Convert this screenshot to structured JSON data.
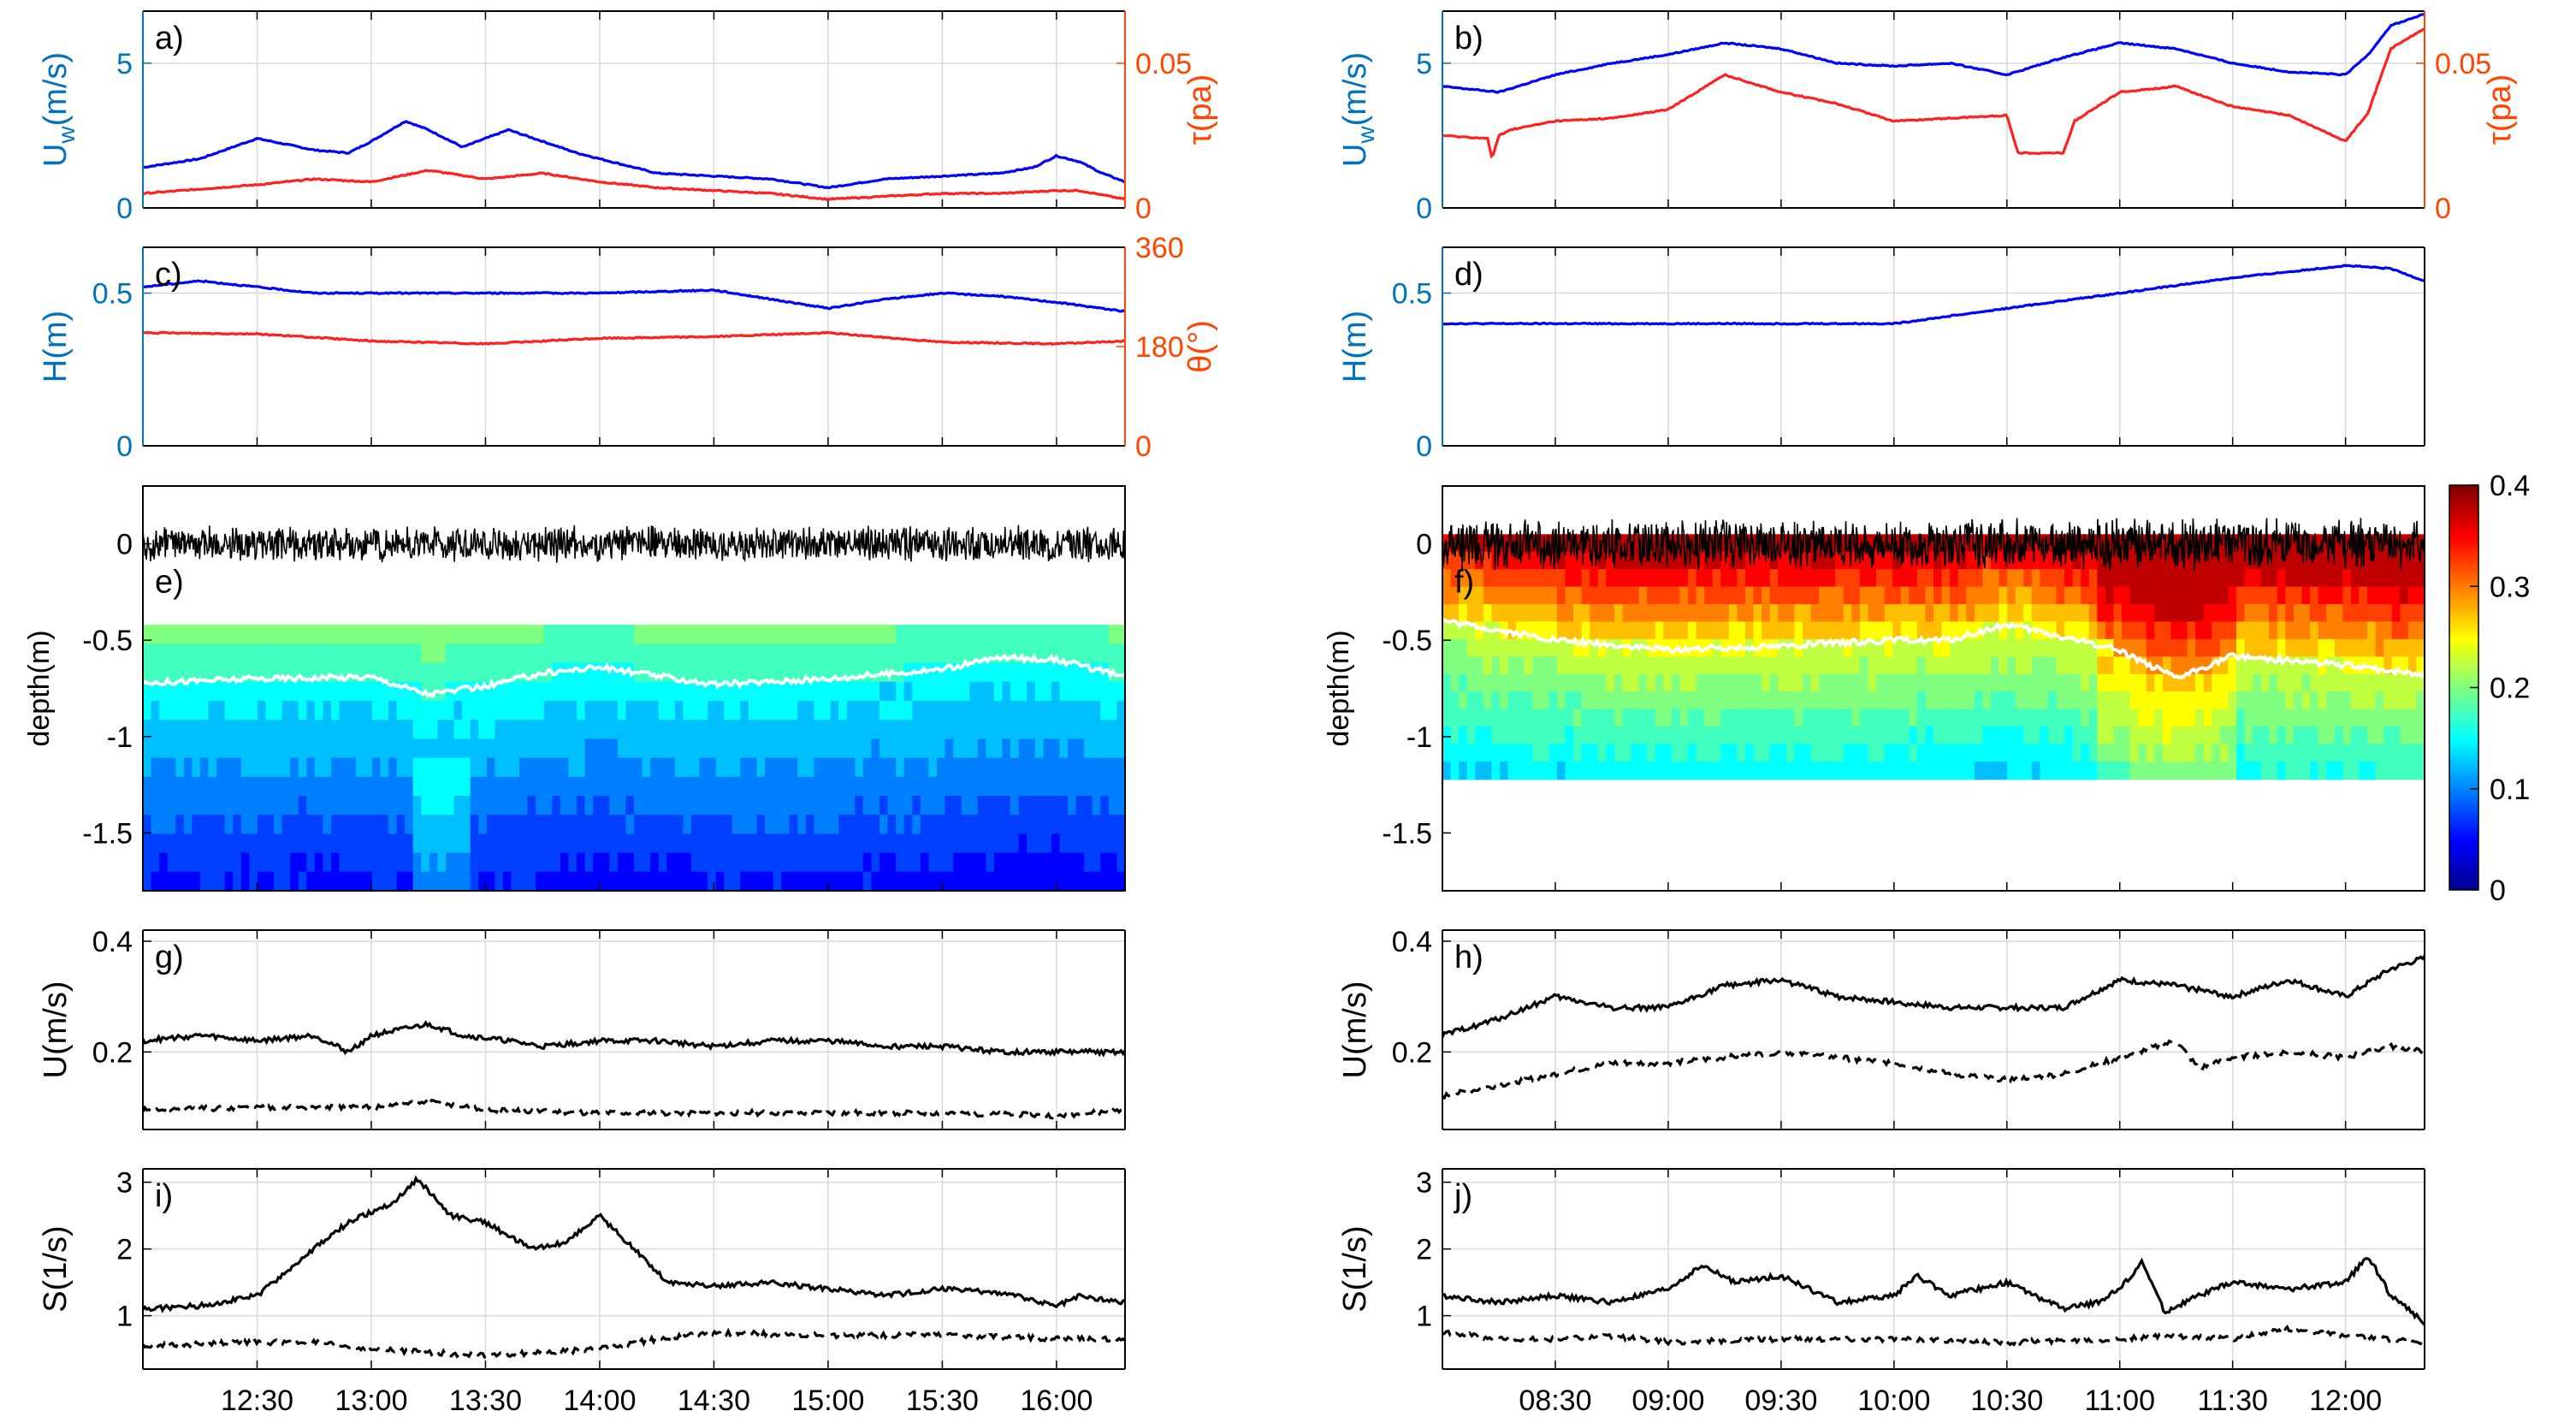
{
  "colors": {
    "blue": "#0000ff",
    "red": "#ff2020",
    "axisBlue": "#0072bd",
    "axisOrange": "#ff4500",
    "black": "#000000",
    "grid": "#d9d9d9"
  },
  "colorbar": {
    "ticks": [
      "0",
      "0.1",
      "0.2",
      "0.3",
      "0.4"
    ],
    "min": 0,
    "max": 0.4
  },
  "chart_data": [
    {
      "id": "a",
      "type": "line",
      "panel_label": "a)",
      "ylabel_left": "U",
      "ylabel_left_sub": "w",
      "ylabel_left_unit": "(m/s)",
      "ylabel_right": "τ(pa)",
      "xlim": [
        12.0,
        16.3
      ],
      "ylim_left": [
        0,
        6.8
      ],
      "ylim_right": [
        0,
        0.068
      ],
      "yticks_left": [
        {
          "v": 0,
          "t": "0"
        },
        {
          "v": 5,
          "t": "5"
        }
      ],
      "yticks_right": [
        {
          "v": 0,
          "t": "0"
        },
        {
          "v": 0.05,
          "t": "0.05"
        }
      ],
      "series": [
        {
          "name": "Uw",
          "axis": "left",
          "color": "blue",
          "x": [
            12.0,
            12.25,
            12.5,
            12.75,
            12.9,
            13.0,
            13.15,
            13.25,
            13.4,
            13.6,
            13.75,
            13.9,
            14.0,
            14.25,
            14.5,
            14.75,
            15.0,
            15.25,
            15.5,
            15.75,
            15.9,
            16.0,
            16.1,
            16.2,
            16.3
          ],
          "y": [
            1.4,
            1.7,
            2.4,
            2.0,
            1.9,
            2.3,
            3.0,
            2.7,
            2.1,
            2.7,
            2.3,
            1.9,
            1.7,
            1.2,
            1.1,
            1.0,
            0.7,
            1.0,
            1.1,
            1.2,
            1.4,
            1.8,
            1.6,
            1.2,
            0.9
          ]
        },
        {
          "name": "tau",
          "axis": "right",
          "color": "red",
          "x": [
            12.0,
            12.5,
            12.75,
            13.0,
            13.25,
            13.5,
            13.75,
            14.0,
            14.25,
            14.5,
            14.75,
            15.0,
            15.25,
            15.5,
            15.75,
            16.0,
            16.1,
            16.3
          ],
          "y": [
            0.005,
            0.008,
            0.01,
            0.009,
            0.013,
            0.01,
            0.012,
            0.009,
            0.007,
            0.006,
            0.005,
            0.003,
            0.004,
            0.005,
            0.005,
            0.006,
            0.006,
            0.003
          ]
        }
      ],
      "xticks": []
    },
    {
      "id": "b",
      "type": "line",
      "panel_label": "b)",
      "ylabel_left": "U",
      "ylabel_left_sub": "w",
      "ylabel_left_unit": "(m/s)",
      "ylabel_right": "τ(pa)",
      "xlim": [
        8.0,
        12.35
      ],
      "ylim_left": [
        0,
        6.8
      ],
      "ylim_right": [
        0,
        0.068
      ],
      "yticks_left": [
        {
          "v": 0,
          "t": "0"
        },
        {
          "v": 5,
          "t": "5"
        }
      ],
      "yticks_right": [
        {
          "v": 0,
          "t": "0"
        },
        {
          "v": 0.05,
          "t": "0.05"
        }
      ],
      "series": [
        {
          "name": "Uw",
          "axis": "left",
          "color": "blue",
          "x": [
            8.0,
            8.25,
            8.5,
            8.75,
            9.0,
            9.25,
            9.5,
            9.75,
            10.0,
            10.25,
            10.5,
            10.75,
            11.0,
            11.25,
            11.5,
            11.75,
            12.0,
            12.1,
            12.2,
            12.35
          ],
          "y": [
            4.2,
            4.0,
            4.6,
            5.0,
            5.3,
            5.7,
            5.5,
            5.0,
            4.9,
            5.0,
            4.6,
            5.2,
            5.7,
            5.5,
            5.0,
            4.7,
            4.6,
            5.3,
            6.3,
            6.7
          ]
        },
        {
          "name": "tau",
          "axis": "right",
          "color": "red",
          "x": [
            8.0,
            8.2,
            8.22,
            8.25,
            8.3,
            8.5,
            8.75,
            9.0,
            9.25,
            9.5,
            9.75,
            10.0,
            10.25,
            10.5,
            10.55,
            10.75,
            10.8,
            11.0,
            11.25,
            11.5,
            11.75,
            12.0,
            12.1,
            12.2,
            12.35
          ],
          "y": [
            0.025,
            0.024,
            0.017,
            0.025,
            0.027,
            0.03,
            0.031,
            0.034,
            0.046,
            0.04,
            0.036,
            0.03,
            0.031,
            0.032,
            0.019,
            0.019,
            0.03,
            0.04,
            0.042,
            0.035,
            0.032,
            0.023,
            0.033,
            0.055,
            0.062
          ]
        }
      ],
      "xticks": []
    },
    {
      "id": "c",
      "type": "line",
      "panel_label": "c)",
      "ylabel_left": "H(m)",
      "ylabel_right": "θ(°)",
      "xlim": [
        12.0,
        16.3
      ],
      "ylim_left": [
        0,
        0.65
      ],
      "ylim_right": [
        0,
        360
      ],
      "yticks_left": [
        {
          "v": 0,
          "t": "0"
        },
        {
          "v": 0.5,
          "t": "0.5"
        }
      ],
      "yticks_right": [
        {
          "v": 0,
          "t": "0"
        },
        {
          "v": 180,
          "t": "180"
        },
        {
          "v": 360,
          "t": "360"
        }
      ],
      "series": [
        {
          "name": "H",
          "axis": "left",
          "color": "blue",
          "x": [
            12.0,
            12.25,
            12.5,
            12.75,
            13.0,
            13.5,
            14.0,
            14.5,
            15.0,
            15.25,
            15.5,
            15.75,
            16.0,
            16.3
          ],
          "y": [
            0.52,
            0.54,
            0.52,
            0.5,
            0.5,
            0.5,
            0.5,
            0.51,
            0.45,
            0.48,
            0.5,
            0.49,
            0.47,
            0.44
          ]
        },
        {
          "name": "theta",
          "axis": "right",
          "color": "red",
          "x": [
            12.0,
            12.5,
            13.0,
            13.5,
            14.0,
            14.5,
            15.0,
            15.5,
            16.0,
            16.3
          ],
          "y": [
            205,
            203,
            190,
            185,
            195,
            198,
            205,
            188,
            185,
            190
          ]
        }
      ],
      "xticks": []
    },
    {
      "id": "d",
      "type": "line",
      "panel_label": "d)",
      "ylabel_left": "H(m)",
      "xlim": [
        8.0,
        12.35
      ],
      "ylim_left": [
        0,
        0.65
      ],
      "yticks_left": [
        {
          "v": 0,
          "t": "0"
        },
        {
          "v": 0.5,
          "t": "0.5"
        }
      ],
      "series": [
        {
          "name": "H",
          "axis": "left",
          "color": "blue",
          "x": [
            8.0,
            9.0,
            10.0,
            10.5,
            11.0,
            11.5,
            12.0,
            12.2,
            12.35
          ],
          "y": [
            0.4,
            0.4,
            0.4,
            0.45,
            0.5,
            0.55,
            0.59,
            0.58,
            0.54
          ]
        }
      ],
      "xticks": []
    },
    {
      "id": "e",
      "type": "heatmap",
      "panel_label": "e)",
      "ylabel_left": "depth(m)",
      "xlim": [
        12.0,
        16.3
      ],
      "ylim": [
        -1.8,
        0.3
      ],
      "yticks": [
        {
          "v": 0,
          "t": "0"
        },
        {
          "v": -0.5,
          "t": "-0.5"
        },
        {
          "v": -1,
          "t": "-1"
        },
        {
          "v": -1.5,
          "t": "-1.5"
        }
      ],
      "value_range": [
        0,
        0.4
      ],
      "top_of_data": -0.42,
      "white_contour": {
        "x": [
          12.0,
          12.5,
          13.0,
          13.25,
          13.5,
          13.75,
          14.0,
          14.5,
          15.0,
          15.5,
          15.75,
          16.0,
          16.3
        ],
        "y": [
          -0.72,
          -0.7,
          -0.69,
          -0.78,
          -0.74,
          -0.67,
          -0.64,
          -0.73,
          -0.7,
          -0.65,
          -0.59,
          -0.6,
          -0.69
        ]
      },
      "surface_line": "black noisy surface at 0 m",
      "xticks": []
    },
    {
      "id": "f",
      "type": "heatmap",
      "panel_label": "f)",
      "ylabel_left": "depth(m)",
      "xlim": [
        8.0,
        12.35
      ],
      "ylim": [
        -1.8,
        0.3
      ],
      "yticks": [
        {
          "v": 0,
          "t": "0"
        },
        {
          "v": -0.5,
          "t": "-0.5"
        },
        {
          "v": -1,
          "t": "-1"
        },
        {
          "v": -1.5,
          "t": "-1.5"
        }
      ],
      "value_range": [
        0,
        0.4
      ],
      "bottom_of_data": -1.22,
      "white_contour": {
        "x": [
          8.0,
          8.5,
          9.0,
          9.5,
          10.0,
          10.25,
          10.5,
          11.0,
          11.25,
          11.5,
          12.0,
          12.35
        ],
        "y": [
          -0.4,
          -0.5,
          -0.55,
          -0.53,
          -0.5,
          -0.5,
          -0.42,
          -0.55,
          -0.7,
          -0.58,
          -0.63,
          -0.68
        ]
      },
      "surface_line": "black noisy surface at 0 m",
      "xticks": []
    },
    {
      "id": "g",
      "type": "line",
      "panel_label": "g)",
      "ylabel_left": "U(m/s)",
      "xlim": [
        12.0,
        16.3
      ],
      "ylim_left": [
        0.06,
        0.42
      ],
      "yticks_left": [
        {
          "v": 0.2,
          "t": "0.2"
        },
        {
          "v": 0.4,
          "t": "0.4"
        }
      ],
      "series": [
        {
          "name": "U",
          "style": "solid",
          "color": "black",
          "x": [
            12.0,
            12.25,
            12.5,
            12.75,
            12.9,
            13.0,
            13.25,
            13.4,
            13.6,
            13.75,
            14.0,
            14.25,
            14.5,
            14.75,
            15.0,
            15.25,
            15.5,
            15.75,
            16.0,
            16.3
          ],
          "y": [
            0.22,
            0.23,
            0.22,
            0.23,
            0.2,
            0.23,
            0.25,
            0.23,
            0.22,
            0.21,
            0.22,
            0.22,
            0.21,
            0.22,
            0.22,
            0.21,
            0.21,
            0.2,
            0.2,
            0.2
          ]
        },
        {
          "name": "U_dashed",
          "style": "dashed",
          "color": "black",
          "x": [
            12.0,
            12.5,
            13.0,
            13.25,
            13.5,
            14.0,
            14.5,
            15.0,
            15.5,
            16.0,
            16.3
          ],
          "y": [
            0.095,
            0.1,
            0.1,
            0.11,
            0.095,
            0.09,
            0.09,
            0.09,
            0.09,
            0.085,
            0.095
          ]
        }
      ],
      "xticks": []
    },
    {
      "id": "h",
      "type": "line",
      "panel_label": "h)",
      "ylabel_left": "U(m/s)",
      "xlim": [
        8.0,
        12.35
      ],
      "ylim_left": [
        0.06,
        0.42
      ],
      "yticks_left": [
        {
          "v": 0.2,
          "t": "0.2"
        },
        {
          "v": 0.4,
          "t": "0.4"
        }
      ],
      "series": [
        {
          "name": "U",
          "style": "solid",
          "color": "black",
          "x": [
            8.0,
            8.25,
            8.5,
            8.75,
            9.0,
            9.25,
            9.5,
            9.75,
            10.0,
            10.25,
            10.5,
            10.75,
            11.0,
            11.25,
            11.5,
            11.75,
            12.0,
            12.2,
            12.35
          ],
          "y": [
            0.23,
            0.26,
            0.3,
            0.28,
            0.28,
            0.32,
            0.33,
            0.3,
            0.29,
            0.28,
            0.28,
            0.28,
            0.33,
            0.32,
            0.3,
            0.33,
            0.3,
            0.35,
            0.37
          ]
        },
        {
          "name": "U_dashed",
          "style": "dashed",
          "color": "black",
          "x": [
            8.0,
            8.25,
            8.5,
            8.75,
            9.0,
            9.25,
            9.5,
            9.75,
            10.0,
            10.25,
            10.5,
            10.75,
            11.0,
            11.25,
            11.35,
            11.5,
            11.75,
            12.0,
            12.2,
            12.35
          ],
          "y": [
            0.12,
            0.14,
            0.16,
            0.18,
            0.18,
            0.19,
            0.2,
            0.19,
            0.18,
            0.16,
            0.15,
            0.16,
            0.19,
            0.22,
            0.17,
            0.19,
            0.2,
            0.19,
            0.21,
            0.2
          ]
        }
      ],
      "xticks": []
    },
    {
      "id": "i",
      "type": "line",
      "panel_label": "i)",
      "ylabel_left": "S(1/s)",
      "xlim": [
        12.0,
        16.3
      ],
      "ylim_left": [
        0.2,
        3.2
      ],
      "yticks_left": [
        {
          "v": 1,
          "t": "1"
        },
        {
          "v": 2,
          "t": "2"
        },
        {
          "v": 3,
          "t": "3"
        }
      ],
      "series": [
        {
          "name": "S",
          "style": "solid",
          "color": "black",
          "x": [
            12.0,
            12.25,
            12.5,
            12.75,
            12.9,
            13.0,
            13.1,
            13.2,
            13.35,
            13.5,
            13.7,
            13.85,
            14.0,
            14.15,
            14.3,
            14.5,
            14.75,
            15.0,
            15.25,
            15.5,
            15.75,
            16.0,
            16.1,
            16.3
          ],
          "y": [
            1.1,
            1.15,
            1.3,
            2.0,
            2.4,
            2.55,
            2.7,
            3.05,
            2.5,
            2.4,
            2.0,
            2.1,
            2.5,
            2.0,
            1.5,
            1.45,
            1.5,
            1.4,
            1.3,
            1.4,
            1.35,
            1.15,
            1.3,
            1.2
          ]
        },
        {
          "name": "S_dashed",
          "style": "dashed",
          "color": "black",
          "x": [
            12.0,
            12.5,
            12.75,
            13.0,
            13.25,
            13.5,
            14.0,
            14.25,
            14.5,
            15.0,
            15.5,
            16.0,
            16.3
          ],
          "y": [
            0.55,
            0.6,
            0.6,
            0.5,
            0.45,
            0.4,
            0.5,
            0.65,
            0.75,
            0.7,
            0.72,
            0.65,
            0.65
          ]
        }
      ],
      "xticks": [
        "12:30",
        "13:00",
        "13:30",
        "14:00",
        "14:30",
        "15:00",
        "15:30",
        "16:00"
      ],
      "xtick_values": [
        12.5,
        13.0,
        13.5,
        14.0,
        14.5,
        15.0,
        15.5,
        16.0
      ]
    },
    {
      "id": "j",
      "type": "line",
      "panel_label": "j)",
      "ylabel_left": "S(1/s)",
      "xlim": [
        8.0,
        12.35
      ],
      "ylim_left": [
        0.2,
        3.2
      ],
      "yticks_left": [
        {
          "v": 1,
          "t": "1"
        },
        {
          "v": 2,
          "t": "2"
        },
        {
          "v": 3,
          "t": "3"
        }
      ],
      "series": [
        {
          "name": "S",
          "style": "solid",
          "color": "black",
          "x": [
            8.0,
            8.25,
            8.5,
            8.75,
            9.0,
            9.15,
            9.3,
            9.5,
            9.75,
            10.0,
            10.1,
            10.25,
            10.5,
            10.75,
            10.9,
            11.0,
            11.1,
            11.2,
            11.35,
            11.5,
            11.75,
            12.0,
            12.1,
            12.2,
            12.35
          ],
          "y": [
            1.3,
            1.2,
            1.3,
            1.2,
            1.4,
            1.75,
            1.5,
            1.6,
            1.2,
            1.3,
            1.6,
            1.3,
            1.5,
            1.1,
            1.2,
            1.4,
            1.8,
            1.05,
            1.3,
            1.5,
            1.4,
            1.5,
            1.9,
            1.3,
            0.9
          ]
        },
        {
          "name": "S_dashed",
          "style": "dashed",
          "color": "black",
          "x": [
            8.0,
            8.25,
            8.5,
            8.75,
            9.0,
            9.5,
            10.0,
            10.5,
            11.0,
            11.25,
            11.5,
            11.75,
            12.0,
            12.35
          ],
          "y": [
            0.75,
            0.65,
            0.65,
            0.7,
            0.6,
            0.65,
            0.65,
            0.6,
            0.65,
            0.7,
            0.65,
            0.8,
            0.7,
            0.6
          ]
        }
      ],
      "xticks": [
        "08:30",
        "09:00",
        "09:30",
        "10:00",
        "10:30",
        "11:00",
        "11:30",
        "12:00"
      ],
      "xtick_values": [
        8.5,
        9.0,
        9.5,
        10.0,
        10.5,
        11.0,
        11.5,
        12.0
      ]
    }
  ]
}
